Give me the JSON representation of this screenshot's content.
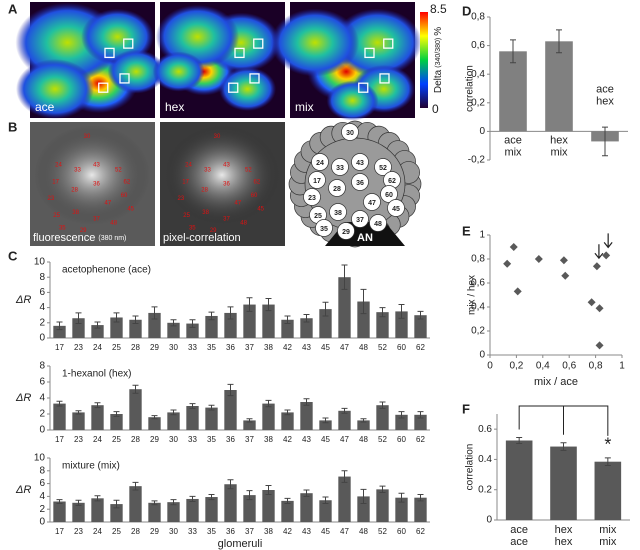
{
  "panel_labels": [
    "A",
    "B",
    "C",
    "D",
    "E",
    "F"
  ],
  "panel_a": {
    "images": [
      "ace",
      "hex",
      "mix"
    ],
    "colorbar": {
      "max": "8.5",
      "min": "0",
      "label": "Delta",
      "label_sub": "(340/380)",
      "label_unit": "%"
    }
  },
  "panel_b": {
    "images": [
      "fluorescence",
      "pixel-correlation"
    ],
    "fluorescence_sub": "(380 nm)",
    "map_labels": [
      "30",
      "24",
      "33",
      "43",
      "52",
      "17",
      "62",
      "28",
      "36",
      "60",
      "23",
      "47",
      "45",
      "25",
      "38",
      "35",
      "37",
      "48",
      "29"
    ],
    "map_nerve": "AN"
  },
  "chart_data": [
    {
      "type": "bar",
      "title": "acetophenone (ace)",
      "y_label": "ΔR",
      "color": "#595959",
      "categories": [
        "17",
        "23",
        "24",
        "25",
        "28",
        "29",
        "30",
        "33",
        "35",
        "36",
        "37",
        "38",
        "42",
        "43",
        "45",
        "47",
        "48",
        "52",
        "60",
        "62"
      ],
      "values": [
        1.6,
        2.6,
        1.7,
        2.7,
        2.4,
        3.3,
        2.0,
        1.9,
        2.9,
        3.3,
        4.4,
        4.4,
        2.4,
        2.6,
        3.8,
        8.0,
        4.8,
        3.4,
        3.5,
        3.0
      ],
      "errors": [
        0.5,
        0.7,
        0.4,
        0.6,
        0.5,
        0.8,
        0.4,
        0.5,
        0.5,
        0.8,
        0.9,
        0.8,
        0.5,
        0.5,
        0.9,
        1.6,
        1.6,
        0.6,
        0.9,
        0.5
      ],
      "ylim": [
        0,
        10
      ],
      "yticks": [
        0,
        2,
        4,
        6,
        8,
        10
      ]
    },
    {
      "type": "bar",
      "title": "1-hexanol (hex)",
      "y_label": "ΔR",
      "color": "#595959",
      "categories": [
        "17",
        "23",
        "24",
        "25",
        "28",
        "29",
        "30",
        "33",
        "35",
        "36",
        "37",
        "38",
        "42",
        "43",
        "45",
        "47",
        "48",
        "52",
        "60",
        "62"
      ],
      "values": [
        3.3,
        2.2,
        3.1,
        2.0,
        5.1,
        1.6,
        2.2,
        3.0,
        2.8,
        5.0,
        1.2,
        3.3,
        2.2,
        3.5,
        1.2,
        2.4,
        1.2,
        3.1,
        1.9,
        1.9
      ],
      "errors": [
        0.3,
        0.2,
        0.3,
        0.3,
        0.5,
        0.2,
        0.3,
        0.3,
        0.3,
        0.7,
        0.2,
        0.4,
        0.3,
        0.4,
        0.3,
        0.3,
        0.2,
        0.4,
        0.4,
        0.4
      ],
      "ylim": [
        0,
        8
      ],
      "yticks": [
        0,
        2,
        4,
        6,
        8
      ]
    },
    {
      "type": "bar",
      "title": "mixture (mix)",
      "y_label": "ΔR",
      "x_label": "glomeruli",
      "color": "#595959",
      "categories": [
        "17",
        "23",
        "24",
        "25",
        "28",
        "29",
        "30",
        "33",
        "35",
        "36",
        "37",
        "38",
        "42",
        "43",
        "45",
        "47",
        "48",
        "52",
        "60",
        "62"
      ],
      "values": [
        3.2,
        3.0,
        3.7,
        2.8,
        5.6,
        3.0,
        3.1,
        3.6,
        3.9,
        5.9,
        4.2,
        5.0,
        3.3,
        4.5,
        3.4,
        7.1,
        4.0,
        5.1,
        3.8,
        3.8
      ],
      "errors": [
        0.3,
        0.4,
        0.4,
        0.6,
        0.6,
        0.3,
        0.4,
        0.4,
        0.4,
        0.7,
        0.7,
        0.7,
        0.4,
        0.5,
        0.5,
        0.9,
        1.1,
        0.5,
        0.7,
        0.5
      ],
      "ylim": [
        0,
        10
      ],
      "yticks": [
        0,
        2,
        4,
        6,
        8,
        10
      ]
    },
    {
      "type": "bar",
      "y_label": "correlation",
      "color": "#808080",
      "categories": [
        [
          "ace",
          "mix"
        ],
        [
          "hex",
          "mix"
        ],
        [
          "ace",
          "hex"
        ]
      ],
      "values": [
        0.56,
        0.63,
        -0.07
      ],
      "errors": [
        0.08,
        0.08,
        0.1
      ],
      "ylim": [
        -0.2,
        0.8
      ],
      "yticks": [
        {
          "value": -0.2,
          "label": "-0,2"
        },
        0,
        {
          "value": 0.2,
          "label": "0,2"
        },
        {
          "value": 0.4,
          "label": "0,4"
        },
        {
          "value": 0.6,
          "label": "0,6"
        },
        {
          "value": 0.8,
          "label": "0,8"
        }
      ]
    },
    {
      "type": "scatter",
      "x_label": "mix / ace",
      "y_label": "mix / hex",
      "color": "#595959",
      "x": [
        0.13,
        0.18,
        0.21,
        0.37,
        0.56,
        0.57,
        0.77,
        0.81,
        0.83,
        0.83,
        0.88
      ],
      "values": [
        0.76,
        0.9,
        0.53,
        0.8,
        0.79,
        0.66,
        0.44,
        0.74,
        0.39,
        0.08,
        0.83
      ],
      "xlim": [
        0,
        1
      ],
      "xticks": [
        0,
        {
          "value": 0.2,
          "label": "0,2"
        },
        {
          "value": 0.4,
          "label": "0,4"
        },
        {
          "value": 0.6,
          "label": "0,6"
        },
        {
          "value": 0.8,
          "label": "0,8"
        },
        1
      ],
      "ylim": [
        0,
        1
      ],
      "yticks": [
        0,
        {
          "value": 0.2,
          "label": "0,2"
        },
        {
          "value": 0.4,
          "label": "0,4"
        },
        {
          "value": 0.6,
          "label": "0,6"
        },
        {
          "value": 0.8,
          "label": "0,8"
        },
        1
      ]
    },
    {
      "type": "bar",
      "y_label": "correlation",
      "color": "#595959",
      "categories": [
        [
          "ace",
          "ace"
        ],
        [
          "hex",
          "hex"
        ],
        [
          "mix",
          "mix"
        ]
      ],
      "values": [
        0.525,
        0.485,
        0.385
      ],
      "errors": [
        0.02,
        0.025,
        0.025
      ],
      "annotation": "*",
      "ylim": [
        0,
        0.7
      ],
      "yticks": [
        0,
        0.2,
        0.4,
        0.6
      ]
    }
  ]
}
